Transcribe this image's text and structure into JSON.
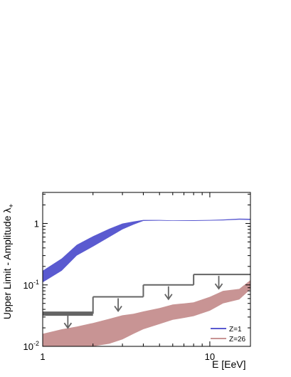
{
  "chart_data": {
    "type": "line",
    "xlabel": "E [EeV]",
    "ylabel": "Upper Limit - Amplitude λ",
    "ylabel_sub": "+",
    "x_scale": "log",
    "y_scale": "log",
    "xlim": [
      1,
      17.5
    ],
    "ylim": [
      0.01,
      3.2
    ],
    "x_ticks": [
      {
        "value": 1,
        "label": "1"
      },
      {
        "value": 10,
        "label": "10"
      }
    ],
    "y_ticks": [
      {
        "value": 1,
        "label": "1",
        "sup": ""
      },
      {
        "value": 0.1,
        "label": "10",
        "sup": "-1"
      },
      {
        "value": 0.01,
        "label": "10",
        "sup": "-2"
      }
    ],
    "colors": {
      "z1": "#5a5ad0",
      "z26": "#c89494",
      "limit": "#646464",
      "axis": "#000000"
    },
    "bands": [
      {
        "name": "Z=1",
        "x": [
          1,
          1.3,
          1.6,
          2,
          2.5,
          3,
          3.5,
          4,
          5,
          6,
          8,
          10,
          12,
          15,
          17.5
        ],
        "upper": [
          0.17,
          0.27,
          0.45,
          0.62,
          0.82,
          1.0,
          1.08,
          1.14,
          1.14,
          1.12,
          1.13,
          1.14,
          1.16,
          1.2,
          1.19
        ],
        "lower": [
          0.11,
          0.17,
          0.3,
          0.42,
          0.6,
          0.8,
          0.96,
          1.1,
          1.11,
          1.1,
          1.1,
          1.11,
          1.12,
          1.15,
          1.14
        ]
      },
      {
        "name": "Z=26",
        "x": [
          1,
          1.3,
          1.6,
          2,
          2.5,
          3,
          3.5,
          4,
          5,
          6,
          7,
          8,
          10,
          12,
          15,
          17.5
        ],
        "upper": [
          0.016,
          0.019,
          0.021,
          0.024,
          0.028,
          0.032,
          0.034,
          0.037,
          0.042,
          0.048,
          0.05,
          0.052,
          0.064,
          0.08,
          0.086,
          0.12
        ],
        "lower": [
          0.01,
          0.01,
          0.01,
          0.01,
          0.011,
          0.013,
          0.016,
          0.019,
          0.023,
          0.027,
          0.029,
          0.031,
          0.038,
          0.05,
          0.058,
          0.085
        ]
      }
    ],
    "limits": [
      {
        "x0": 1,
        "x1": 2,
        "y": 0.034
      },
      {
        "x0": 2,
        "x1": 4,
        "y": 0.064
      },
      {
        "x0": 4,
        "x1": 8,
        "y": 0.1
      },
      {
        "x0": 8,
        "x1": 17.5,
        "y": 0.148
      }
    ],
    "legend": {
      "placement": "bottom-right",
      "entries": [
        {
          "label": "Z=1",
          "color": "#5a5ad0"
        },
        {
          "label": "Z=26",
          "color": "#c89494"
        }
      ]
    }
  }
}
